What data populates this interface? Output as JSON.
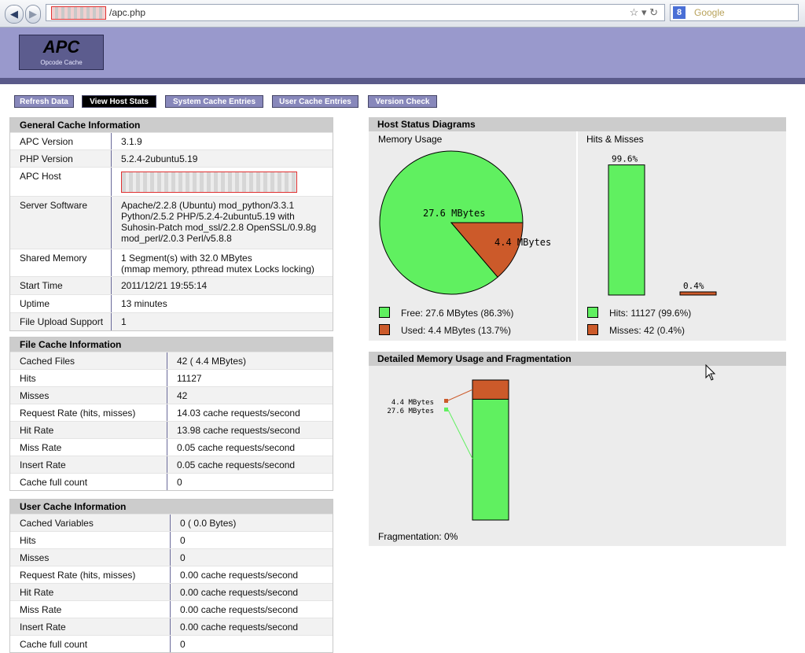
{
  "browser": {
    "url_path": "/apc.php",
    "search_placeholder": "Google",
    "g_icon": "8"
  },
  "header": {
    "logo_title": "APC",
    "logo_subtitle": "Opcode Cache"
  },
  "menu": {
    "refresh": "Refresh Data",
    "host_stats": "View Host Stats",
    "system_entries": "System Cache Entries",
    "user_entries": "User Cache Entries",
    "version_check": "Version Check"
  },
  "general": {
    "title": "General Cache Information",
    "rows": [
      {
        "k": "APC Version",
        "v": "3.1.9"
      },
      {
        "k": "PHP Version",
        "v": "5.2.4-2ubuntu5.19"
      },
      {
        "k": "APC Host",
        "v": ""
      },
      {
        "k": "Server Software",
        "v": "Apache/2.2.8 (Ubuntu) mod_python/3.3.1 Python/2.5.2 PHP/5.2.4-2ubuntu5.19 with Suhosin-Patch mod_ssl/2.2.8 OpenSSL/0.9.8g mod_perl/2.0.3 Perl/v5.8.8"
      },
      {
        "k": "Shared Memory",
        "v": "1 Segment(s) with 32.0 MBytes",
        "v2": "(mmap memory, pthread mutex Locks locking)"
      },
      {
        "k": "Start Time",
        "v": "2011/12/21 19:55:14"
      },
      {
        "k": "Uptime",
        "v": "13 minutes"
      },
      {
        "k": "File Upload Support",
        "v": "1"
      }
    ]
  },
  "file_cache": {
    "title": "File Cache Information",
    "rows": [
      {
        "k": "Cached Files",
        "v": "42 ( 4.4 MBytes)"
      },
      {
        "k": "Hits",
        "v": "11127"
      },
      {
        "k": "Misses",
        "v": "42"
      },
      {
        "k": "Request Rate (hits, misses)",
        "v": "14.03 cache requests/second"
      },
      {
        "k": "Hit Rate",
        "v": "13.98 cache requests/second"
      },
      {
        "k": "Miss Rate",
        "v": "0.05 cache requests/second"
      },
      {
        "k": "Insert Rate",
        "v": "0.05 cache requests/second"
      },
      {
        "k": "Cache full count",
        "v": "0"
      }
    ]
  },
  "user_cache": {
    "title": "User Cache Information",
    "rows": [
      {
        "k": "Cached Variables",
        "v": "0 ( 0.0 Bytes)"
      },
      {
        "k": "Hits",
        "v": "0"
      },
      {
        "k": "Misses",
        "v": "0"
      },
      {
        "k": "Request Rate (hits, misses)",
        "v": "0.00 cache requests/second"
      },
      {
        "k": "Hit Rate",
        "v": "0.00 cache requests/second"
      },
      {
        "k": "Miss Rate",
        "v": "0.00 cache requests/second"
      },
      {
        "k": "Insert Rate",
        "v": "0.00 cache requests/second"
      },
      {
        "k": "Cache full count",
        "v": "0"
      }
    ]
  },
  "host_status": {
    "title": "Host Status Diagrams",
    "memory_label": "Memory Usage",
    "hits_label": "Hits & Misses",
    "free_legend": "Free: 27.6 MBytes (86.3%)",
    "used_legend": "Used: 4.4 MBytes (13.7%)",
    "hits_legend": "Hits: 11127 (99.6%)",
    "misses_legend": "Misses: 42 (0.4%)"
  },
  "detailed": {
    "title": "Detailed Memory Usage and Fragmentation",
    "fragmentation": "Fragmentation: 0%"
  },
  "colors": {
    "free": "#60f060",
    "used": "#cc5a2a",
    "header": "#9999cc",
    "header_dark": "#5a5a8a"
  },
  "chart_data": [
    {
      "type": "pie",
      "title": "Memory Usage",
      "labels": [
        "Free",
        "Used"
      ],
      "values": [
        27.6,
        4.4
      ],
      "percent": [
        86.3,
        13.7
      ],
      "slice_labels": [
        "27.6 MBytes",
        "4.4 MBytes"
      ],
      "unit": "MBytes"
    },
    {
      "type": "bar",
      "title": "Hits & Misses",
      "categories": [
        "Hits",
        "Misses"
      ],
      "values": [
        11127,
        42
      ],
      "percent": [
        99.6,
        0.4
      ],
      "bar_labels": [
        "99.6%",
        "0.4%"
      ]
    },
    {
      "type": "bar",
      "title": "Detailed Memory Usage and Fragmentation",
      "stacked": true,
      "segments": [
        {
          "name": "Used",
          "value": 4.4,
          "label": "4.4 MBytes"
        },
        {
          "name": "Free",
          "value": 27.6,
          "label": "27.6 MBytes"
        }
      ],
      "unit": "MBytes",
      "fragmentation_percent": 0
    }
  ]
}
